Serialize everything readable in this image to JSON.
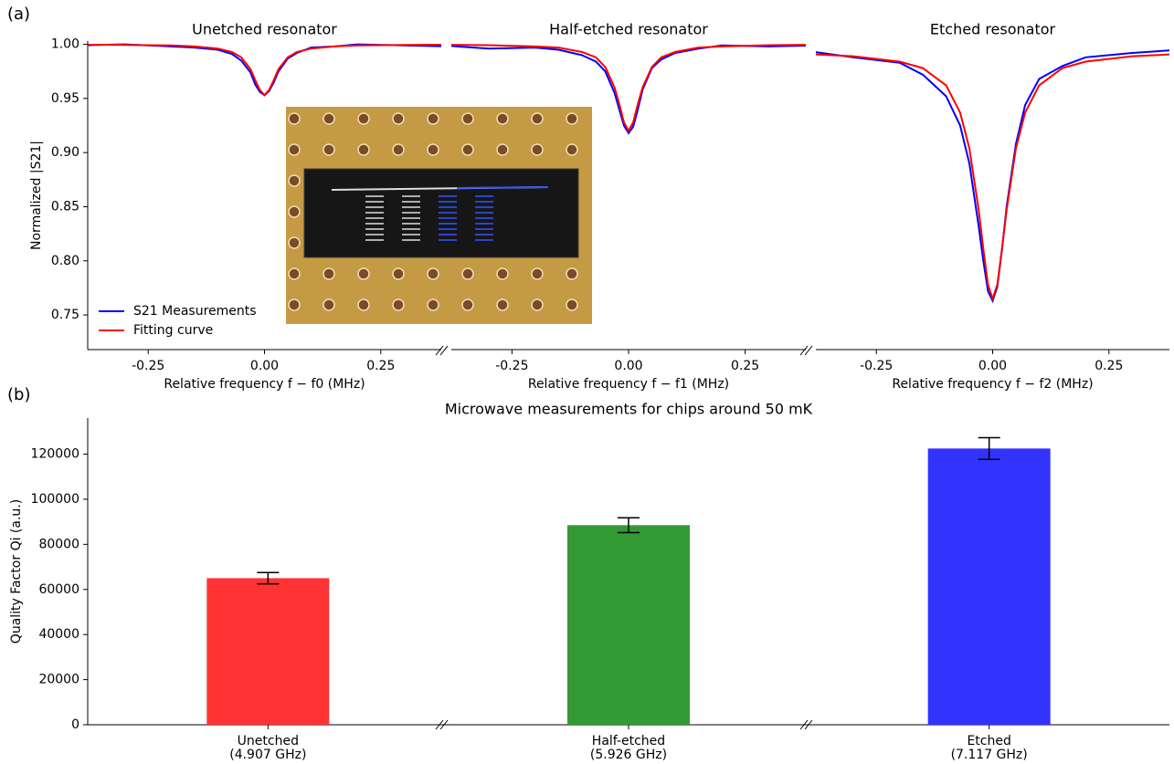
{
  "chart_data": [
    {
      "type": "line",
      "panel_label": "(a)",
      "title": "Unetched resonator",
      "x_label": "Relative frequency f − f0 (MHz)",
      "y_label": "Normalized |S21|",
      "xlim": [
        -0.38,
        0.38
      ],
      "xticks": [
        -0.25,
        {
          "value": 0,
          "label": "0.00"
        },
        0.25
      ],
      "ylim": [
        0.718,
        1.003
      ],
      "yticks": [
        {
          "value": 1,
          "label": "1.00"
        },
        0.95,
        {
          "value": 0.9,
          "label": "0.90"
        },
        0.85,
        {
          "value": 0.8,
          "label": "0.80"
        },
        0.75
      ],
      "legend": "lower left",
      "x": [
        -0.4,
        -0.3,
        -0.2,
        -0.15,
        -0.1,
        -0.07,
        -0.05,
        -0.03,
        -0.02,
        -0.01,
        0,
        0.01,
        0.02,
        0.03,
        0.05,
        0.07,
        0.1,
        0.15,
        0.2,
        0.3,
        0.4
      ],
      "series": [
        {
          "name": "S21 Measurements",
          "color": "#0000ff",
          "values": [
            0.999,
            1.0,
            0.998,
            0.997,
            0.995,
            0.991,
            0.985,
            0.974,
            0.963,
            0.956,
            0.953,
            0.957,
            0.965,
            0.975,
            0.987,
            0.992,
            0.997,
            0.998,
            1.0,
            0.999,
            0.998
          ]
        },
        {
          "name": "Fitting curve",
          "color": "#ff0000",
          "values": [
            0.9997,
            0.9995,
            0.999,
            0.998,
            0.996,
            0.993,
            0.988,
            0.977,
            0.967,
            0.958,
            0.953,
            0.958,
            0.967,
            0.977,
            0.988,
            0.993,
            0.996,
            0.998,
            0.999,
            0.9995,
            0.9997
          ]
        }
      ]
    },
    {
      "type": "line",
      "title": "Half-etched resonator",
      "x_label": "Relative frequency f − f1 (MHz)",
      "xlim": [
        -0.38,
        0.38
      ],
      "xticks": [
        -0.25,
        {
          "value": 0,
          "label": "0.00"
        },
        0.25
      ],
      "ylim": [
        0.718,
        1.003
      ],
      "x": [
        -0.4,
        -0.3,
        -0.2,
        -0.15,
        -0.1,
        -0.07,
        -0.05,
        -0.03,
        -0.02,
        -0.01,
        0,
        0.01,
        0.02,
        0.03,
        0.05,
        0.07,
        0.1,
        0.15,
        0.2,
        0.3,
        0.4
      ],
      "series": [
        {
          "color": "#0000ff",
          "values": [
            0.999,
            0.996,
            0.997,
            0.995,
            0.99,
            0.984,
            0.975,
            0.955,
            0.94,
            0.925,
            0.918,
            0.924,
            0.94,
            0.958,
            0.978,
            0.986,
            0.992,
            0.996,
            0.999,
            0.998,
            0.999
          ]
        },
        {
          "color": "#ff0000",
          "values": [
            0.9996,
            0.9992,
            0.998,
            0.997,
            0.993,
            0.988,
            0.979,
            0.96,
            0.945,
            0.928,
            0.92,
            0.928,
            0.945,
            0.96,
            0.979,
            0.988,
            0.993,
            0.997,
            0.998,
            0.9992,
            0.9996
          ]
        }
      ]
    },
    {
      "type": "line",
      "title": "Etched resonator",
      "x_label": "Relative frequency f − f2 (MHz)",
      "xlim": [
        -0.38,
        0.38
      ],
      "xticks": [
        -0.25,
        {
          "value": 0,
          "label": "0.00"
        },
        0.25
      ],
      "ylim": [
        0.718,
        1.003
      ],
      "x": [
        -0.4,
        -0.3,
        -0.2,
        -0.15,
        -0.1,
        -0.07,
        -0.05,
        -0.03,
        -0.02,
        -0.01,
        0,
        0.01,
        0.02,
        0.03,
        0.05,
        0.07,
        0.1,
        0.15,
        0.2,
        0.3,
        0.4
      ],
      "series": [
        {
          "color": "#0000ff",
          "values": [
            0.994,
            0.988,
            0.983,
            0.972,
            0.952,
            0.925,
            0.89,
            0.832,
            0.8,
            0.772,
            0.763,
            0.776,
            0.81,
            0.85,
            0.908,
            0.944,
            0.968,
            0.98,
            0.988,
            0.992,
            0.995
          ]
        },
        {
          "color": "#ff0000",
          "values": [
            0.991,
            0.989,
            0.984,
            0.978,
            0.962,
            0.937,
            0.904,
            0.847,
            0.811,
            0.778,
            0.765,
            0.778,
            0.811,
            0.847,
            0.904,
            0.937,
            0.962,
            0.978,
            0.984,
            0.989,
            0.991
          ]
        }
      ]
    },
    {
      "type": "bar",
      "panel_label": "(b)",
      "title": "Microwave measurements for chips around 50 mK",
      "y_label": "Quality Factor Qi (a.u.)",
      "categories": [
        "Unetched",
        "Half-etched",
        "Etched"
      ],
      "category_sublabels": [
        "(4.907 GHz)",
        "(5.926 GHz)",
        "(7.117 GHz)"
      ],
      "values": [
        65000,
        88500,
        122500
      ],
      "errors": [
        2500,
        3300,
        4800
      ],
      "colors": [
        "#ff3333",
        "#339933",
        "#3333ff"
      ],
      "ylim": [
        0,
        136000
      ],
      "yticks": [
        0,
        20000,
        40000,
        60000,
        80000,
        100000,
        120000
      ]
    }
  ]
}
